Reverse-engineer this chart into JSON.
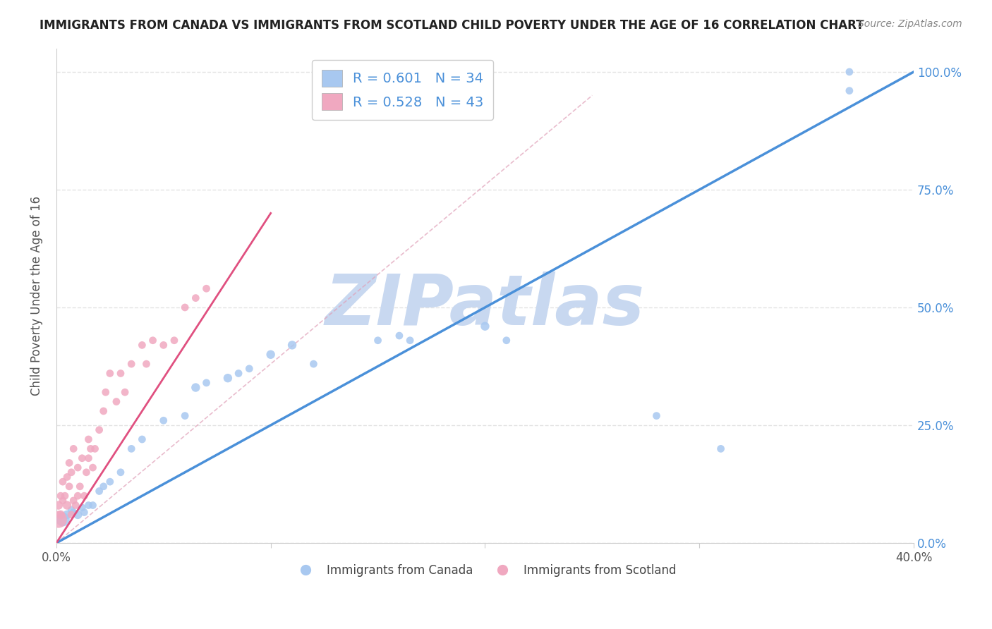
{
  "title": "IMMIGRANTS FROM CANADA VS IMMIGRANTS FROM SCOTLAND CHILD POVERTY UNDER THE AGE OF 16 CORRELATION CHART",
  "source": "Source: ZipAtlas.com",
  "ylabel": "Child Poverty Under the Age of 16",
  "xlabel": "",
  "xlim": [
    0.0,
    0.4
  ],
  "ylim": [
    0.0,
    1.05
  ],
  "yticks": [
    0.0,
    0.25,
    0.5,
    0.75,
    1.0
  ],
  "ytick_labels": [
    "0.0%",
    "25.0%",
    "50.0%",
    "75.0%",
    "100.0%"
  ],
  "xticks": [
    0.0,
    0.1,
    0.2,
    0.3,
    0.4
  ],
  "xtick_labels": [
    "0.0%",
    "",
    "",
    "",
    "40.0%"
  ],
  "canada_R": 0.601,
  "canada_N": 34,
  "scotland_R": 0.528,
  "scotland_N": 43,
  "canada_color": "#a8c8f0",
  "scotland_color": "#f0a8c0",
  "canada_line_color": "#4a90d9",
  "scotland_line_color": "#e05080",
  "watermark": "ZIPatlas",
  "watermark_color": "#c8d8f0",
  "legend_text_color": "#4a90d9",
  "canada_scatter_x": [
    0.003,
    0.005,
    0.007,
    0.008,
    0.01,
    0.012,
    0.013,
    0.015,
    0.017,
    0.02,
    0.022,
    0.025,
    0.03,
    0.035,
    0.04,
    0.05,
    0.06,
    0.065,
    0.07,
    0.08,
    0.085,
    0.09,
    0.1,
    0.11,
    0.12,
    0.15,
    0.16,
    0.165,
    0.2,
    0.21,
    0.28,
    0.31,
    0.37,
    0.37
  ],
  "canada_scatter_y": [
    0.05,
    0.06,
    0.07,
    0.065,
    0.06,
    0.075,
    0.065,
    0.08,
    0.08,
    0.11,
    0.12,
    0.13,
    0.15,
    0.2,
    0.22,
    0.26,
    0.27,
    0.33,
    0.34,
    0.35,
    0.36,
    0.37,
    0.4,
    0.42,
    0.38,
    0.43,
    0.44,
    0.43,
    0.46,
    0.43,
    0.27,
    0.2,
    0.96,
    1.0
  ],
  "canada_scatter_size": [
    200,
    80,
    60,
    60,
    80,
    60,
    60,
    60,
    60,
    60,
    60,
    60,
    60,
    60,
    60,
    60,
    60,
    80,
    60,
    80,
    60,
    60,
    80,
    80,
    60,
    60,
    60,
    60,
    80,
    60,
    60,
    60,
    60,
    60
  ],
  "scotland_scatter_x": [
    0.001,
    0.001,
    0.002,
    0.002,
    0.003,
    0.003,
    0.004,
    0.005,
    0.005,
    0.006,
    0.006,
    0.007,
    0.007,
    0.008,
    0.008,
    0.009,
    0.01,
    0.01,
    0.011,
    0.012,
    0.013,
    0.014,
    0.015,
    0.015,
    0.016,
    0.017,
    0.018,
    0.02,
    0.022,
    0.023,
    0.025,
    0.028,
    0.03,
    0.032,
    0.035,
    0.04,
    0.042,
    0.045,
    0.05,
    0.055,
    0.06,
    0.065,
    0.07
  ],
  "scotland_scatter_y": [
    0.05,
    0.08,
    0.06,
    0.1,
    0.09,
    0.13,
    0.1,
    0.08,
    0.14,
    0.12,
    0.17,
    0.06,
    0.15,
    0.09,
    0.2,
    0.08,
    0.1,
    0.16,
    0.12,
    0.18,
    0.1,
    0.15,
    0.18,
    0.22,
    0.2,
    0.16,
    0.2,
    0.24,
    0.28,
    0.32,
    0.36,
    0.3,
    0.36,
    0.32,
    0.38,
    0.42,
    0.38,
    0.43,
    0.42,
    0.43,
    0.5,
    0.52,
    0.54
  ],
  "scotland_scatter_size": [
    300,
    80,
    80,
    60,
    60,
    60,
    60,
    80,
    60,
    60,
    60,
    60,
    60,
    60,
    60,
    60,
    60,
    60,
    60,
    60,
    60,
    60,
    60,
    60,
    60,
    60,
    60,
    60,
    60,
    60,
    60,
    60,
    60,
    60,
    60,
    60,
    60,
    60,
    60,
    60,
    60,
    60,
    60
  ],
  "canada_trend_x": [
    0.0,
    0.4
  ],
  "canada_trend_y": [
    0.0,
    1.0
  ],
  "scotland_trend_x": [
    0.0,
    0.1
  ],
  "scotland_trend_y": [
    0.0,
    0.7
  ],
  "background_color": "#ffffff",
  "grid_color": "#dddddd"
}
